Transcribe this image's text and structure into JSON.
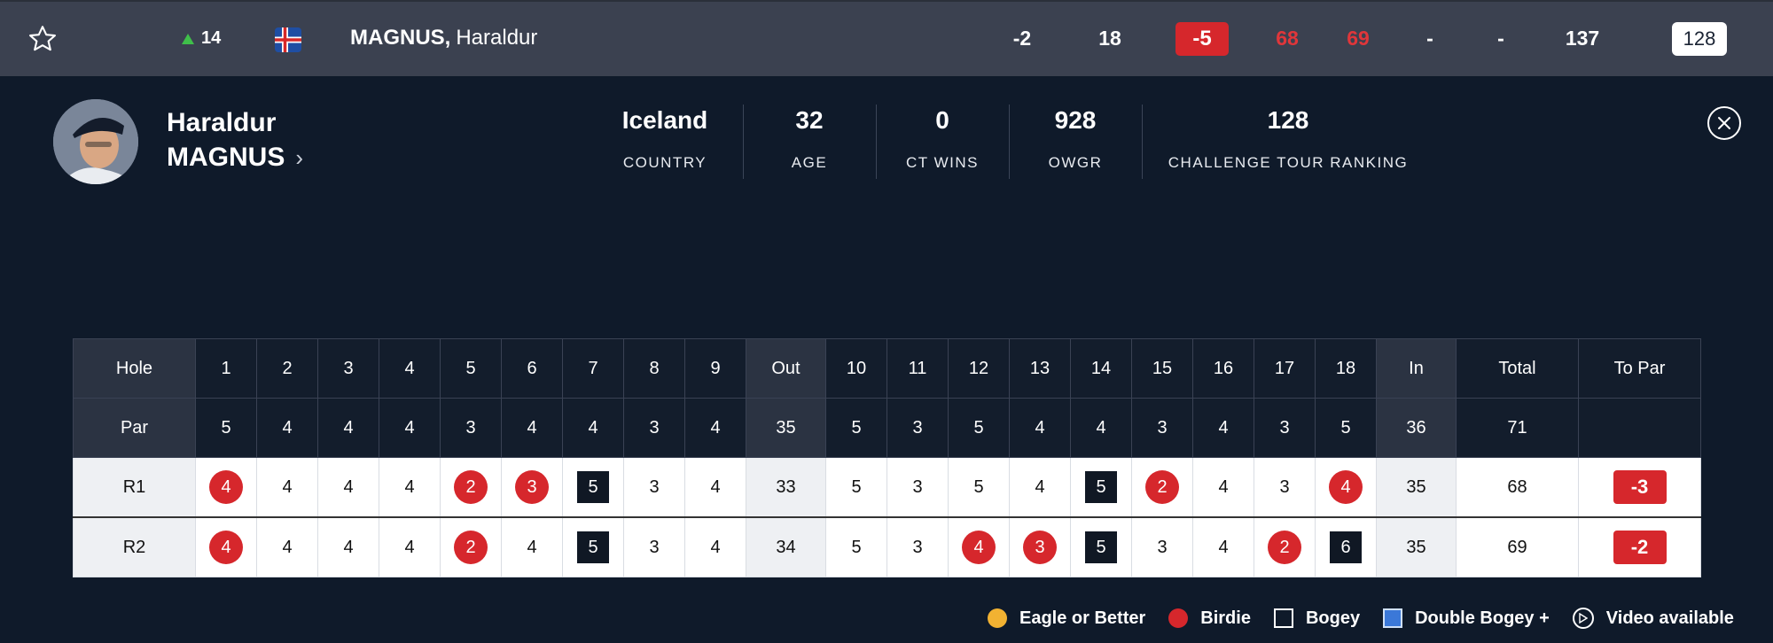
{
  "leaderboard_row": {
    "movement": "14",
    "player_last": "MAGNUS,",
    "player_first": "Haraldur",
    "today": "-2",
    "thru": "18",
    "to_par": "-5",
    "r1": "68",
    "r2": "69",
    "r3": "-",
    "r4": "-",
    "total": "137",
    "ranking": "128",
    "colors": {
      "movement_up": "#3fbf4a",
      "under_par": "#d6272c"
    }
  },
  "profile": {
    "first_name": "Haraldur",
    "last_name": "MAGNUS",
    "stats": [
      {
        "value": "Iceland",
        "label": "COUNTRY"
      },
      {
        "value": "32",
        "label": "AGE"
      },
      {
        "value": "0",
        "label": "CT WINS"
      },
      {
        "value": "928",
        "label": "OWGR"
      },
      {
        "value": "128",
        "label": "CHALLENGE TOUR RANKING"
      }
    ]
  },
  "scorecard": {
    "hole_label": "Hole",
    "holes": [
      "1",
      "2",
      "3",
      "4",
      "5",
      "6",
      "7",
      "8",
      "9",
      "Out",
      "10",
      "11",
      "12",
      "13",
      "14",
      "15",
      "16",
      "17",
      "18",
      "In",
      "Total",
      "To Par"
    ],
    "par_label": "Par",
    "par": [
      "5",
      "4",
      "4",
      "4",
      "3",
      "4",
      "4",
      "3",
      "4",
      "35",
      "5",
      "3",
      "5",
      "4",
      "4",
      "3",
      "4",
      "3",
      "5",
      "36",
      "71",
      ""
    ],
    "rounds": [
      {
        "label": "R1",
        "scores": [
          "4",
          "4",
          "4",
          "4",
          "2",
          "3",
          "5",
          "3",
          "4",
          "33",
          "5",
          "3",
          "5",
          "4",
          "5",
          "2",
          "4",
          "3",
          "4",
          "35",
          "68",
          "-3"
        ],
        "marks": [
          "birdie",
          "",
          "",
          "",
          "birdie",
          "birdie",
          "bogey",
          "",
          "",
          "",
          "",
          "",
          "",
          "",
          "bogey",
          "birdie",
          "",
          "",
          "birdie",
          "",
          "",
          "topar"
        ]
      },
      {
        "label": "R2",
        "scores": [
          "4",
          "4",
          "4",
          "4",
          "2",
          "4",
          "5",
          "3",
          "4",
          "34",
          "5",
          "3",
          "4",
          "3",
          "5",
          "3",
          "4",
          "2",
          "6",
          "35",
          "69",
          "-2"
        ],
        "marks": [
          "birdie",
          "",
          "",
          "",
          "birdie",
          "",
          "bogey",
          "",
          "",
          "",
          "",
          "",
          "birdie",
          "birdie",
          "bogey",
          "",
          "",
          "birdie",
          "bogey",
          "",
          "",
          "topar"
        ]
      }
    ]
  },
  "legend": [
    {
      "key": "eagle",
      "label": "Eagle or Better",
      "color": "#f2b232"
    },
    {
      "key": "birdie",
      "label": "Birdie",
      "color": "#d6272c"
    },
    {
      "key": "bogey",
      "label": "Bogey",
      "color": "#0f1a2a"
    },
    {
      "key": "dbogey",
      "label": "Double Bogey +",
      "color": "#3b78d8"
    },
    {
      "key": "video",
      "label": "Video available",
      "color": "#ffffff"
    }
  ],
  "icons": {
    "favorite": "star-outline-icon",
    "flag": "iceland-flag-icon",
    "close": "close-icon",
    "profile_link": "chevron-right-icon",
    "video": "play-circle-icon"
  }
}
